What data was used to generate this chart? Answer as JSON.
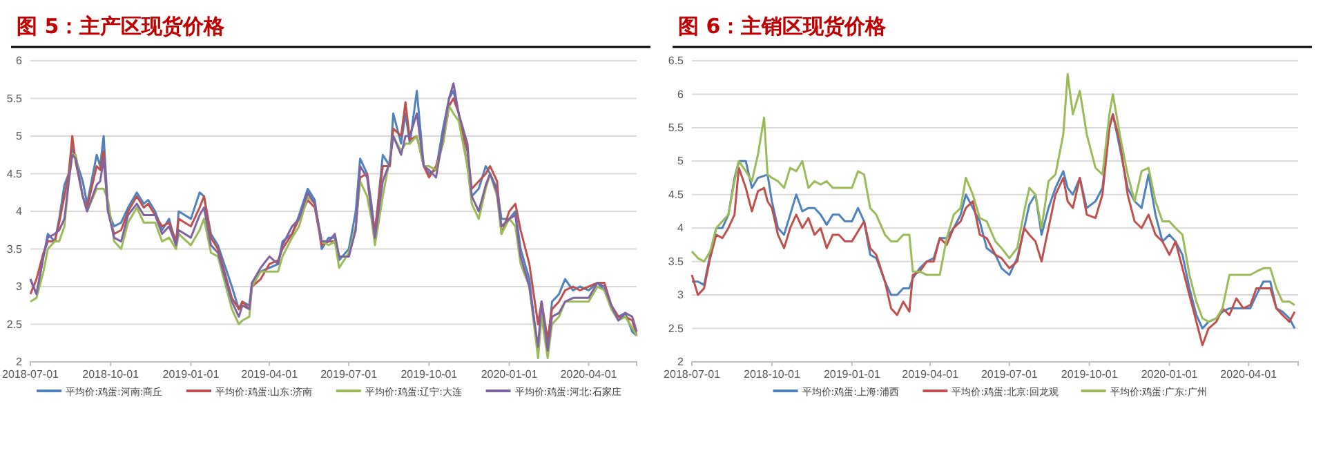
{
  "chart_data": [
    {
      "type": "line",
      "title": "图 5：主产区现货价格",
      "xlim": [
        "2018-07-01",
        "2020-05-26"
      ],
      "xticks": [
        "2018-07-01",
        "2018-10-01",
        "2019-01-01",
        "2019-04-01",
        "2019-07-01",
        "2019-10-01",
        "2020-01-01",
        "2020-04-01"
      ],
      "ylim": [
        2,
        6
      ],
      "yticks": [
        2,
        2.5,
        3,
        3.5,
        4,
        4.5,
        5,
        5.5,
        6
      ],
      "grid": "y",
      "legend": "bottom",
      "x": [
        "2018-07-01",
        "2018-07-08",
        "2018-07-16",
        "2018-07-21",
        "2018-07-29",
        "2018-08-03",
        "2018-08-09",
        "2018-08-14",
        "2018-08-18",
        "2018-08-22",
        "2018-08-30",
        "2018-09-04",
        "2018-09-15",
        "2018-09-19",
        "2018-09-23",
        "2018-09-28",
        "2018-10-05",
        "2018-10-13",
        "2018-10-21",
        "2018-10-31",
        "2018-11-08",
        "2018-11-13",
        "2018-11-21",
        "2018-11-29",
        "2018-12-07",
        "2018-12-15",
        "2018-12-18",
        "2019-01-01",
        "2019-01-11",
        "2019-01-16",
        "2019-01-24",
        "2019-02-01",
        "2019-02-17",
        "2019-02-25",
        "2019-03-01",
        "2019-03-09",
        "2019-03-12",
        "2019-03-22",
        "2019-04-01",
        "2019-04-11",
        "2019-04-16",
        "2019-04-27",
        "2019-05-05",
        "2019-05-15",
        "2019-05-23",
        "2019-05-31",
        "2019-06-08",
        "2019-06-15",
        "2019-06-20",
        "2019-07-01",
        "2019-07-09",
        "2019-07-14",
        "2019-07-22",
        "2019-07-27",
        "2019-07-31",
        "2019-08-09",
        "2019-08-17",
        "2019-08-21",
        "2019-08-30",
        "2019-09-04",
        "2019-09-09",
        "2019-09-17",
        "2019-09-25",
        "2019-10-01",
        "2019-10-09",
        "2019-10-17",
        "2019-10-24",
        "2019-10-29",
        "2019-11-04",
        "2019-11-14",
        "2019-11-19",
        "2019-11-27",
        "2019-12-05",
        "2019-12-10",
        "2019-12-18",
        "2019-12-23",
        "2020-01-01",
        "2020-01-08",
        "2020-01-14",
        "2020-01-24",
        "2020-02-03",
        "2020-02-07",
        "2020-02-14",
        "2020-02-19",
        "2020-02-27",
        "2020-03-05",
        "2020-03-14",
        "2020-03-22",
        "2020-04-01",
        "2020-04-11",
        "2020-04-19",
        "2020-04-27",
        "2020-05-05",
        "2020-05-13",
        "2020-05-21",
        "2020-05-26"
      ],
      "series": [
        {
          "name": "平均价:鸡蛋:河南:商丘",
          "color": "#4f81bd",
          "values": [
            3.1,
            2.9,
            3.4,
            3.7,
            3.6,
            3.9,
            4.35,
            4.5,
            4.85,
            4.7,
            4.4,
            4.1,
            4.75,
            4.6,
            5.0,
            4.0,
            3.8,
            3.85,
            4.05,
            4.25,
            4.1,
            4.15,
            4.0,
            3.75,
            3.9,
            3.55,
            4.0,
            3.9,
            4.25,
            4.2,
            3.7,
            3.55,
            3.0,
            2.7,
            2.8,
            2.75,
            3.05,
            3.2,
            3.25,
            3.3,
            3.6,
            3.7,
            3.95,
            4.3,
            4.15,
            3.5,
            3.65,
            3.65,
            3.35,
            3.5,
            4.0,
            4.7,
            4.5,
            4.1,
            3.7,
            4.75,
            4.6,
            5.3,
            4.9,
            5.3,
            4.9,
            5.6,
            4.6,
            4.5,
            4.55,
            5.1,
            5.5,
            5.6,
            5.3,
            4.6,
            4.2,
            4.3,
            4.6,
            4.5,
            4.3,
            3.9,
            3.9,
            4.0,
            3.5,
            3.1,
            2.1,
            2.8,
            2.2,
            2.8,
            2.9,
            3.1,
            2.95,
            3.0,
            2.95,
            3.05,
            2.95,
            2.75,
            2.6,
            2.65,
            2.4,
            2.35
          ]
        },
        {
          "name": "平均价:鸡蛋:山东:济南",
          "color": "#c0504d",
          "values": [
            2.9,
            3.1,
            3.45,
            3.6,
            3.6,
            3.85,
            4.2,
            4.5,
            5.0,
            4.65,
            4.2,
            4.05,
            4.6,
            4.55,
            4.8,
            4.0,
            3.7,
            3.75,
            4.0,
            4.2,
            4.05,
            4.1,
            3.95,
            3.8,
            3.85,
            3.6,
            3.9,
            3.8,
            4.05,
            4.2,
            3.65,
            3.5,
            2.85,
            2.7,
            2.8,
            2.7,
            3.0,
            3.1,
            3.3,
            3.35,
            3.5,
            3.7,
            3.9,
            4.15,
            4.05,
            3.55,
            3.6,
            3.6,
            3.4,
            3.4,
            3.8,
            4.45,
            4.5,
            4.0,
            3.75,
            4.6,
            4.6,
            5.1,
            5.0,
            5.45,
            4.95,
            5.0,
            4.6,
            4.45,
            4.6,
            4.9,
            5.4,
            5.5,
            5.3,
            4.8,
            4.3,
            4.4,
            4.5,
            4.6,
            4.4,
            3.7,
            4.0,
            4.1,
            3.75,
            3.3,
            2.5,
            2.8,
            2.3,
            2.7,
            2.8,
            2.95,
            3.0,
            2.95,
            3.0,
            3.05,
            3.05,
            2.75,
            2.6,
            2.6,
            2.55,
            2.35
          ]
        },
        {
          "name": "平均价:鸡蛋:辽宁:大连",
          "color": "#9bbb59",
          "values": [
            2.8,
            2.85,
            3.2,
            3.5,
            3.6,
            3.6,
            3.8,
            4.4,
            4.75,
            4.75,
            4.2,
            4.0,
            4.3,
            4.3,
            4.3,
            4.15,
            3.6,
            3.5,
            3.85,
            4.05,
            3.85,
            3.85,
            3.85,
            3.6,
            3.65,
            3.5,
            3.7,
            3.55,
            3.75,
            3.9,
            3.45,
            3.4,
            2.7,
            2.5,
            2.55,
            2.6,
            3.0,
            3.2,
            3.2,
            3.2,
            3.4,
            3.65,
            3.8,
            4.2,
            4.1,
            3.6,
            3.55,
            3.6,
            3.25,
            3.45,
            3.8,
            4.4,
            4.2,
            3.9,
            3.55,
            4.2,
            4.7,
            5.0,
            4.8,
            4.9,
            4.9,
            5.0,
            4.6,
            4.6,
            4.55,
            4.9,
            5.4,
            5.3,
            5.2,
            4.6,
            4.1,
            3.9,
            4.3,
            4.5,
            4.2,
            3.7,
            3.9,
            3.8,
            3.3,
            3.0,
            2.05,
            2.6,
            2.05,
            2.5,
            2.6,
            2.8,
            2.8,
            2.8,
            2.8,
            3.0,
            2.95,
            2.7,
            2.55,
            2.6,
            2.45,
            2.35
          ]
        },
        {
          "name": "平均价:鸡蛋:河北:石家庄",
          "color": "#8064a2",
          "values": [
            3.1,
            2.9,
            3.4,
            3.65,
            3.7,
            3.75,
            3.9,
            4.4,
            4.75,
            4.7,
            4.2,
            4.0,
            4.35,
            4.4,
            4.7,
            4.0,
            3.65,
            3.6,
            3.95,
            4.1,
            3.95,
            3.95,
            3.95,
            3.7,
            3.8,
            3.55,
            3.75,
            3.65,
            3.95,
            4.05,
            3.55,
            3.45,
            2.8,
            2.6,
            2.75,
            2.7,
            3.05,
            3.25,
            3.4,
            3.3,
            3.55,
            3.8,
            3.9,
            4.25,
            4.1,
            3.6,
            3.6,
            3.7,
            3.4,
            3.4,
            3.75,
            4.6,
            4.45,
            4.0,
            3.65,
            4.4,
            4.65,
            5.0,
            4.75,
            5.0,
            5.0,
            5.3,
            4.6,
            4.55,
            4.45,
            5.0,
            5.5,
            5.7,
            5.3,
            4.9,
            4.2,
            4.0,
            4.35,
            4.5,
            4.25,
            3.8,
            3.9,
            3.95,
            3.4,
            3.0,
            2.2,
            2.8,
            2.15,
            2.6,
            2.65,
            2.8,
            2.85,
            2.85,
            2.85,
            3.05,
            3.0,
            2.75,
            2.55,
            2.65,
            2.6,
            2.4
          ]
        }
      ]
    },
    {
      "type": "line",
      "title": "图 6：主销区现货价格",
      "xlim": [
        "2018-07-01",
        "2020-05-28"
      ],
      "xticks": [
        "2018-07-01",
        "2018-10-01",
        "2019-01-01",
        "2019-04-01",
        "2019-07-01",
        "2019-10-01",
        "2020-01-01",
        "2020-04-01"
      ],
      "ylim": [
        2,
        6.5
      ],
      "yticks": [
        2,
        2.5,
        3,
        3.5,
        4,
        4.5,
        5,
        5.5,
        6,
        6.5
      ],
      "grid": "y",
      "legend": "bottom",
      "x": [
        "2018-07-01",
        "2018-07-08",
        "2018-07-15",
        "2018-07-22",
        "2018-07-29",
        "2018-08-05",
        "2018-08-12",
        "2018-08-19",
        "2018-08-24",
        "2018-09-01",
        "2018-09-08",
        "2018-09-15",
        "2018-09-22",
        "2018-09-26",
        "2018-10-01",
        "2018-10-08",
        "2018-10-15",
        "2018-10-22",
        "2018-10-29",
        "2018-11-05",
        "2018-11-12",
        "2018-11-19",
        "2018-11-26",
        "2018-12-03",
        "2018-12-10",
        "2018-12-17",
        "2018-12-24",
        "2019-01-01",
        "2019-01-08",
        "2019-01-15",
        "2019-01-22",
        "2019-01-29",
        "2019-02-08",
        "2019-02-15",
        "2019-02-22",
        "2019-03-01",
        "2019-03-08",
        "2019-03-12",
        "2019-03-20",
        "2019-03-28",
        "2019-04-05",
        "2019-04-12",
        "2019-04-20",
        "2019-04-28",
        "2019-05-06",
        "2019-05-12",
        "2019-05-20",
        "2019-05-28",
        "2019-06-05",
        "2019-06-15",
        "2019-06-22",
        "2019-07-01",
        "2019-07-10",
        "2019-07-18",
        "2019-07-24",
        "2019-07-31",
        "2019-08-07",
        "2019-08-15",
        "2019-08-23",
        "2019-09-01",
        "2019-09-06",
        "2019-09-12",
        "2019-09-20",
        "2019-09-28",
        "2019-10-08",
        "2019-10-16",
        "2019-10-24",
        "2019-10-28",
        "2019-11-05",
        "2019-11-14",
        "2019-11-22",
        "2019-11-30",
        "2019-12-08",
        "2019-12-16",
        "2019-12-24",
        "2020-01-01",
        "2020-01-08",
        "2020-01-16",
        "2020-01-24",
        "2020-02-01",
        "2020-02-08",
        "2020-02-15",
        "2020-02-24",
        "2020-03-02",
        "2020-03-10",
        "2020-03-18",
        "2020-03-26",
        "2020-04-03",
        "2020-04-10",
        "2020-04-18",
        "2020-04-26",
        "2020-05-03",
        "2020-05-10",
        "2020-05-18",
        "2020-05-24"
      ],
      "series": [
        {
          "name": "平均价:鸡蛋:上海:浦西",
          "color": "#4f81bd",
          "values": [
            3.2,
            3.2,
            3.15,
            3.6,
            4.0,
            4.0,
            4.2,
            4.75,
            5.0,
            5.0,
            4.6,
            4.75,
            4.78,
            4.8,
            4.4,
            4.0,
            3.9,
            4.2,
            4.5,
            4.25,
            4.3,
            4.3,
            4.2,
            4.05,
            4.2,
            4.2,
            4.1,
            4.1,
            4.3,
            4.1,
            3.6,
            3.55,
            3.2,
            3.0,
            3.0,
            3.1,
            3.1,
            3.25,
            3.4,
            3.5,
            3.55,
            3.85,
            3.85,
            4.0,
            4.2,
            4.5,
            4.3,
            4.1,
            3.7,
            3.6,
            3.4,
            3.3,
            3.55,
            4.0,
            4.35,
            4.5,
            3.9,
            4.3,
            4.6,
            4.85,
            4.6,
            4.5,
            4.75,
            4.3,
            4.4,
            4.6,
            5.5,
            5.7,
            5.2,
            4.6,
            4.4,
            4.3,
            4.8,
            4.2,
            3.8,
            3.9,
            3.8,
            3.6,
            3.1,
            2.7,
            2.5,
            2.6,
            2.65,
            2.75,
            2.8,
            2.8,
            2.8,
            2.8,
            3.0,
            3.2,
            3.2,
            2.8,
            2.75,
            2.65,
            2.5
          ]
        },
        {
          "name": "平均价:鸡蛋:北京:回龙观",
          "color": "#c0504d",
          "values": [
            3.3,
            3.0,
            3.1,
            3.55,
            3.9,
            3.85,
            4.0,
            4.2,
            4.9,
            4.6,
            4.25,
            4.55,
            4.6,
            4.4,
            4.3,
            3.9,
            3.7,
            4.0,
            4.2,
            4.0,
            4.15,
            3.9,
            4.0,
            3.7,
            3.9,
            3.9,
            3.8,
            3.8,
            3.95,
            4.1,
            3.7,
            3.6,
            3.2,
            2.8,
            2.7,
            2.9,
            2.75,
            3.3,
            3.35,
            3.5,
            3.5,
            3.85,
            3.75,
            4.0,
            4.1,
            4.3,
            4.4,
            3.9,
            3.85,
            3.6,
            3.55,
            3.4,
            3.5,
            4.0,
            3.9,
            3.8,
            3.5,
            4.0,
            4.5,
            4.75,
            4.4,
            4.3,
            4.75,
            4.2,
            4.15,
            4.5,
            5.5,
            5.7,
            5.3,
            4.5,
            4.1,
            4.0,
            4.2,
            3.9,
            3.8,
            3.6,
            3.8,
            3.4,
            3.0,
            2.6,
            2.25,
            2.5,
            2.6,
            2.8,
            2.7,
            2.95,
            2.8,
            2.85,
            3.1,
            3.1,
            3.1,
            2.8,
            2.7,
            2.6,
            2.75
          ]
        },
        {
          "name": "平均价:鸡蛋:广东:广州",
          "color": "#9bbb59",
          "values": [
            3.65,
            3.55,
            3.5,
            3.65,
            4.0,
            4.1,
            4.2,
            4.7,
            5.0,
            4.85,
            4.7,
            5.1,
            5.65,
            4.8,
            4.75,
            4.7,
            4.6,
            4.9,
            4.85,
            5.0,
            4.6,
            4.7,
            4.65,
            4.7,
            4.6,
            4.6,
            4.6,
            4.6,
            4.85,
            4.8,
            4.3,
            4.2,
            3.9,
            3.8,
            3.8,
            3.9,
            3.9,
            3.35,
            3.35,
            3.3,
            3.3,
            3.3,
            3.85,
            4.2,
            4.3,
            4.75,
            4.5,
            4.15,
            4.1,
            3.8,
            3.7,
            3.55,
            3.7,
            4.25,
            4.6,
            4.5,
            4.0,
            4.7,
            4.8,
            5.4,
            6.3,
            5.7,
            6.05,
            5.4,
            4.9,
            4.8,
            5.7,
            6.0,
            5.4,
            4.8,
            4.4,
            4.85,
            4.9,
            4.4,
            4.1,
            4.1,
            4.0,
            3.9,
            3.3,
            2.9,
            2.65,
            2.6,
            2.65,
            2.8,
            3.3,
            3.3,
            3.3,
            3.3,
            3.35,
            3.4,
            3.4,
            3.1,
            2.9,
            2.9,
            2.85
          ]
        }
      ]
    }
  ]
}
